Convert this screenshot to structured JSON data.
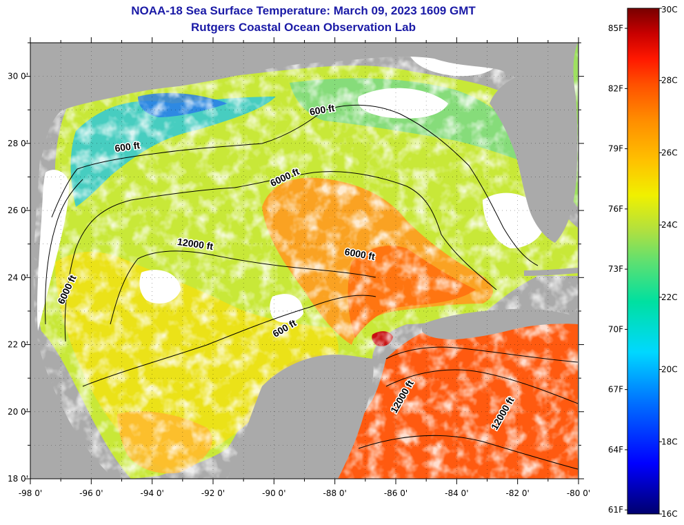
{
  "header": {
    "title": "NOAA-18 Sea Surface Temperature:  March 09, 2023 1609 GMT",
    "subtitle": "Rutgers Coastal Ocean Observation Lab"
  },
  "map": {
    "lat_ticks": [
      "30 0'",
      "28 0'",
      "26 0'",
      "24 0'",
      "22 0'",
      "20 0'",
      "18 0'"
    ],
    "lon_ticks": [
      "-98 0'",
      "-96 0'",
      "-94 0'",
      "-92 0'",
      "-90 0'",
      "-88 0'",
      "-86 0'",
      "-84 0'",
      "-82 0'",
      "-80 0'"
    ],
    "lat_range": [
      18,
      31
    ],
    "lon_range": [
      -98,
      -80
    ],
    "contour_labels": [
      {
        "text": "600 ft",
        "lon": -94.8,
        "lat": 27.8
      },
      {
        "text": "600 ft",
        "lon": -88.4,
        "lat": 28.9
      },
      {
        "text": "6000 ft",
        "lon": -89.6,
        "lat": 26.9
      },
      {
        "text": "12000 ft",
        "lon": -92.6,
        "lat": 24.9
      },
      {
        "text": "6000 ft",
        "lon": -87.2,
        "lat": 24.6
      },
      {
        "text": "6000 ft",
        "lon": -96.7,
        "lat": 23.6
      },
      {
        "text": "600 ft",
        "lon": -89.6,
        "lat": 22.4
      },
      {
        "text": "12000 ft",
        "lon": -85.7,
        "lat": 20.4
      },
      {
        "text": "12000 ft",
        "lon": -82.4,
        "lat": 19.9
      }
    ],
    "colors": {
      "land": "#aaaaaa",
      "cloud": "#ffffff",
      "contour": "#000000"
    }
  },
  "colorbar": {
    "fahrenheit_labels": [
      "85F",
      "82F",
      "79F",
      "76F",
      "73F",
      "70F",
      "67F",
      "64F",
      "61F"
    ],
    "celsius_labels": [
      "30C",
      "28C",
      "26C",
      "24C",
      "22C",
      "20C",
      "18C",
      "16C"
    ],
    "range_c": [
      16,
      30
    ],
    "colors": [
      "#00006e",
      "#0000ff",
      "#0070ff",
      "#00d8ff",
      "#00e0a0",
      "#60e070",
      "#b0e040",
      "#f0f000",
      "#ffc000",
      "#ff8c00",
      "#ff5000",
      "#ff1800",
      "#c80000",
      "#780000"
    ]
  }
}
